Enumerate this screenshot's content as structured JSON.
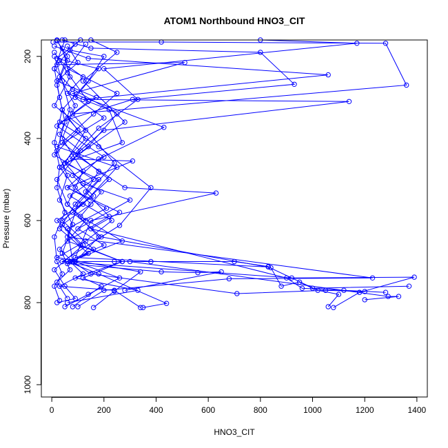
{
  "chart_data": {
    "type": "line",
    "title": "ATOM1 Northbound HNO3_CIT",
    "xlabel": "HNO3_CIT",
    "ylabel": "Pressure (mbar)",
    "xlim": [
      -40,
      1440
    ],
    "ylim": [
      1030,
      160
    ],
    "y_reversed": true,
    "x_ticks": [
      0,
      200,
      400,
      600,
      800,
      1000,
      1200,
      1400
    ],
    "y_ticks": [
      200,
      400,
      600,
      800,
      1000
    ],
    "color": "#0000ff",
    "marker": "open-circle",
    "grid": false,
    "legend": "none",
    "series": [
      {
        "points": [
          [
            20,
            162
          ],
          [
            60,
            200
          ],
          [
            30,
            250
          ],
          [
            90,
            320
          ],
          [
            40,
            400
          ],
          [
            120,
            480
          ],
          [
            60,
            560
          ],
          [
            180,
            640
          ],
          [
            90,
            700
          ],
          [
            260,
            740
          ],
          [
            140,
            780
          ],
          [
            50,
            810
          ]
        ]
      },
      {
        "points": [
          [
            10,
            175
          ],
          [
            140,
            205
          ],
          [
            1060,
            245
          ],
          [
            120,
            305
          ],
          [
            1140,
            310
          ],
          [
            200,
            380
          ],
          [
            90,
            440
          ],
          [
            280,
            520
          ],
          [
            630,
            533
          ],
          [
            150,
            600
          ],
          [
            90,
            690
          ],
          [
            830,
            713
          ],
          [
            1020,
            770
          ],
          [
            1100,
            780
          ],
          [
            1060,
            810
          ]
        ]
      },
      {
        "points": [
          [
            40,
            160
          ],
          [
            150,
            180
          ],
          [
            800,
            190
          ],
          [
            930,
            268
          ],
          [
            310,
            305
          ],
          [
            30,
            360
          ],
          [
            180,
            420
          ],
          [
            380,
            520
          ],
          [
            260,
            612
          ],
          [
            40,
            700
          ],
          [
            920,
            740
          ],
          [
            1390,
            738
          ],
          [
            1180,
            775
          ],
          [
            1080,
            812
          ]
        ]
      },
      {
        "points": [
          [
            5,
            165
          ],
          [
            420,
            165
          ],
          [
            1280,
            168
          ],
          [
            1360,
            270
          ],
          [
            80,
            340
          ],
          [
            240,
            460
          ],
          [
            100,
            560
          ],
          [
            60,
            640
          ],
          [
            1230,
            740
          ],
          [
            680,
            742
          ],
          [
            200,
            770
          ],
          [
            100,
            810
          ]
        ]
      },
      {
        "points": [
          [
            90,
            170
          ],
          [
            20,
            220
          ],
          [
            510,
            215
          ],
          [
            80,
            290
          ],
          [
            430,
            373
          ],
          [
            180,
            450
          ],
          [
            60,
            520
          ],
          [
            210,
            570
          ],
          [
            60,
            620
          ],
          [
            80,
            700
          ],
          [
            300,
            700
          ],
          [
            1290,
            785
          ],
          [
            1330,
            785
          ],
          [
            1200,
            793
          ]
        ]
      },
      {
        "points": [
          [
            10,
            190
          ],
          [
            60,
            240
          ],
          [
            140,
            310
          ],
          [
            20,
            370
          ],
          [
            200,
            445
          ],
          [
            80,
            490
          ],
          [
            160,
            540
          ],
          [
            20,
            600
          ],
          [
            120,
            660
          ],
          [
            10,
            720
          ],
          [
            50,
            760
          ],
          [
            90,
            790
          ],
          [
            20,
            800
          ]
        ]
      },
      {
        "points": [
          [
            30,
            210
          ],
          [
            120,
            250
          ],
          [
            60,
            290
          ],
          [
            220,
            330
          ],
          [
            270,
            410
          ],
          [
            50,
            460
          ],
          [
            120,
            510
          ],
          [
            300,
            550
          ],
          [
            100,
            620
          ],
          [
            200,
            660
          ],
          [
            60,
            700
          ],
          [
            180,
            730
          ],
          [
            440,
            802
          ],
          [
            350,
            812
          ]
        ]
      },
      {
        "points": [
          [
            70,
            185
          ],
          [
            200,
            200
          ],
          [
            140,
            260
          ],
          [
            40,
            330
          ],
          [
            100,
            380
          ],
          [
            10,
            440
          ],
          [
            160,
            500
          ],
          [
            70,
            540
          ],
          [
            230,
            600
          ],
          [
            130,
            650
          ],
          [
            20,
            690
          ],
          [
            340,
            725
          ],
          [
            240,
            772
          ],
          [
            160,
            812
          ]
        ]
      },
      {
        "points": [
          [
            50,
            160
          ],
          [
            10,
            230
          ],
          [
            80,
            280
          ],
          [
            250,
            340
          ],
          [
            140,
            420
          ],
          [
            40,
            470
          ],
          [
            190,
            530
          ],
          [
            110,
            590
          ],
          [
            270,
            650
          ],
          [
            70,
            700
          ],
          [
            120,
            730
          ],
          [
            30,
            760
          ],
          [
            240,
            770
          ],
          [
            340,
            812
          ]
        ]
      },
      {
        "points": [
          [
            60,
            175
          ],
          [
            100,
            215
          ],
          [
            20,
            260
          ],
          [
            170,
            300
          ],
          [
            60,
            350
          ],
          [
            130,
            400
          ],
          [
            30,
            470
          ],
          [
            90,
            520
          ],
          [
            150,
            560
          ],
          [
            40,
            610
          ],
          [
            110,
            660
          ],
          [
            270,
            700
          ],
          [
            90,
            740
          ],
          [
            330,
            770
          ],
          [
            60,
            800
          ]
        ]
      },
      {
        "points": [
          [
            20,
            160
          ],
          [
            60,
            210
          ],
          [
            20,
            270
          ],
          [
            40,
            330
          ],
          [
            10,
            410
          ],
          [
            30,
            470
          ],
          [
            20,
            520
          ],
          [
            50,
            580
          ],
          [
            10,
            640
          ],
          [
            20,
            700
          ],
          [
            40,
            730
          ],
          [
            10,
            760
          ],
          [
            30,
            795
          ]
        ]
      },
      {
        "points": [
          [
            10,
            230
          ],
          [
            30,
            300
          ],
          [
            50,
            360
          ],
          [
            20,
            430
          ],
          [
            60,
            490
          ],
          [
            30,
            550
          ],
          [
            80,
            610
          ],
          [
            40,
            680
          ],
          [
            70,
            720
          ],
          [
            20,
            750
          ],
          [
            60,
            790
          ]
        ]
      },
      {
        "points": [
          [
            800,
            160
          ],
          [
            1170,
            168
          ],
          [
            200,
            230
          ],
          [
            330,
            305
          ],
          [
            180,
            375
          ],
          [
            70,
            450
          ],
          [
            310,
            455
          ],
          [
            60,
            520
          ],
          [
            260,
            580
          ],
          [
            150,
            620
          ],
          [
            900,
            740
          ],
          [
            960,
            765
          ],
          [
            1120,
            770
          ],
          [
            1280,
            775
          ]
        ]
      },
      {
        "points": [
          [
            150,
            160
          ],
          [
            250,
            190
          ],
          [
            120,
            260
          ],
          [
            280,
            360
          ],
          [
            100,
            440
          ],
          [
            220,
            500
          ],
          [
            80,
            580
          ],
          [
            190,
            640
          ],
          [
            840,
            715
          ],
          [
            880,
            760
          ],
          [
            950,
            750
          ],
          [
            1000,
            765
          ],
          [
            1370,
            760
          ]
        ]
      },
      {
        "points": [
          [
            110,
            160
          ],
          [
            20,
            205
          ],
          [
            180,
            230
          ],
          [
            90,
            300
          ],
          [
            200,
            350
          ],
          [
            20,
            420
          ],
          [
            250,
            470
          ],
          [
            120,
            560
          ],
          [
            40,
            600
          ],
          [
            160,
            670
          ],
          [
            80,
            700
          ],
          [
            240,
            700
          ],
          [
            380,
            700
          ],
          [
            700,
            700
          ],
          [
            830,
            712
          ]
        ]
      },
      {
        "points": [
          [
            40,
            180
          ],
          [
            70,
            250
          ],
          [
            10,
            320
          ],
          [
            130,
            380
          ],
          [
            50,
            460
          ],
          [
            180,
            500
          ],
          [
            90,
            560
          ],
          [
            30,
            620
          ],
          [
            140,
            680
          ],
          [
            60,
            705
          ],
          [
            420,
            725
          ],
          [
            560,
            727
          ],
          [
            650,
            725
          ],
          [
            280,
            770
          ]
        ]
      },
      {
        "points": [
          [
            10,
            200
          ],
          [
            40,
            260
          ],
          [
            70,
            330
          ],
          [
            30,
            390
          ],
          [
            110,
            430
          ],
          [
            20,
            500
          ],
          [
            60,
            560
          ],
          [
            130,
            600
          ],
          [
            30,
            670
          ],
          [
            80,
            700
          ],
          [
            150,
            730
          ],
          [
            710,
            778
          ],
          [
            1050,
            770
          ],
          [
            1200,
            773
          ]
        ]
      },
      {
        "points": [
          [
            130,
            170
          ],
          [
            60,
            230
          ],
          [
            250,
            290
          ],
          [
            160,
            340
          ],
          [
            40,
            410
          ],
          [
            180,
            480
          ],
          [
            130,
            530
          ],
          [
            220,
            590
          ],
          [
            60,
            650
          ],
          [
            270,
            700
          ],
          [
            120,
            740
          ],
          [
            190,
            760
          ],
          [
            80,
            810
          ]
        ]
      }
    ]
  }
}
